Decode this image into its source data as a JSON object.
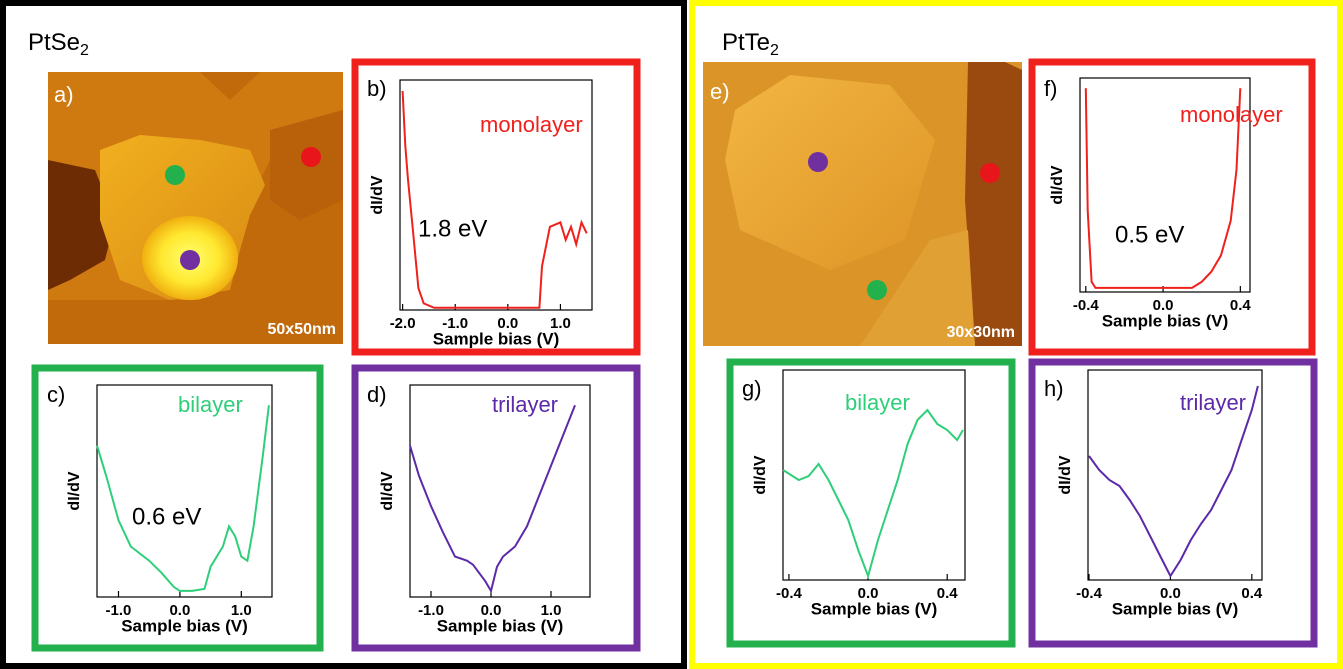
{
  "groups": [
    {
      "title": {
        "base": "PtSe",
        "sub": "2"
      }
    },
    {
      "title": {
        "base": "PtTe",
        "sub": "2"
      }
    }
  ],
  "images": [
    {
      "label": "a)",
      "scale": "50x50nm",
      "dots": [
        "#e8161b",
        "#22b14c",
        "#7030a0"
      ]
    },
    {
      "label": "e)",
      "scale": "30x30nm",
      "dots": [
        "#7030a0",
        "#e8161b",
        "#22b14c"
      ]
    }
  ],
  "chart_data": [
    {
      "type": "line",
      "panel_label": "b)",
      "annotation": "monolayer",
      "gap_label": "1.8 eV",
      "xlabel": "Sample bias (V)",
      "ylabel": "dI/dV",
      "color": "#f0201c",
      "frame_color": "#f0201c",
      "x": [
        -2.0,
        -1.95,
        -1.9,
        -1.8,
        -1.7,
        -1.6,
        -1.4,
        -1.0,
        -0.5,
        0.0,
        0.4,
        0.6,
        0.65,
        0.8,
        1.0,
        1.1,
        1.2,
        1.3,
        1.4,
        1.5
      ],
      "values": [
        100,
        75,
        60,
        35,
        10,
        3,
        1,
        1,
        1,
        1,
        1,
        1,
        20,
        38,
        40,
        32,
        38,
        30,
        40,
        35
      ],
      "xlim": [
        -2.05,
        1.6
      ],
      "ylim": [
        0,
        105
      ],
      "xticks": [
        {
          "value": -2.0,
          "label": "-2.0"
        },
        {
          "value": -1.0,
          "label": "-1.0"
        },
        {
          "value": 0,
          "label": "0.0"
        },
        {
          "value": 1.0,
          "label": "1.0"
        }
      ]
    },
    {
      "type": "line",
      "panel_label": "c)",
      "annotation": "bilayer",
      "gap_label": "0.6 eV",
      "xlabel": "Sample bias (V)",
      "ylabel": "dI/dV",
      "color": "#2fcf7a",
      "frame_color": "#22b14c",
      "x": [
        -1.35,
        -1.2,
        -1.0,
        -0.8,
        -0.5,
        -0.3,
        -0.1,
        0.0,
        0.2,
        0.4,
        0.5,
        0.7,
        0.8,
        0.9,
        1.0,
        1.1,
        1.2,
        1.35,
        1.45
      ],
      "values": [
        75,
        60,
        38,
        25,
        18,
        12,
        5,
        3,
        3,
        4,
        15,
        25,
        35,
        30,
        20,
        18,
        35,
        70,
        95
      ],
      "xlim": [
        -1.35,
        1.5
      ],
      "ylim": [
        0,
        105
      ],
      "xticks": [
        {
          "value": -1.0,
          "label": "-1.0"
        },
        {
          "value": 0,
          "label": "0.0"
        },
        {
          "value": 1.0,
          "label": "1.0"
        }
      ]
    },
    {
      "type": "line",
      "panel_label": "d)",
      "annotation": "trilayer",
      "xlabel": "Sample bias (V)",
      "ylabel": "dI/dV",
      "color": "#5b2aa8",
      "frame_color": "#7030a0",
      "x": [
        -1.35,
        -1.2,
        -1.0,
        -0.8,
        -0.6,
        -0.4,
        -0.3,
        -0.1,
        0.0,
        0.1,
        0.2,
        0.4,
        0.6,
        0.8,
        1.0,
        1.2,
        1.4
      ],
      "values": [
        75,
        60,
        45,
        32,
        20,
        18,
        16,
        8,
        3,
        15,
        20,
        25,
        35,
        50,
        65,
        80,
        95
      ],
      "xlim": [
        -1.35,
        1.65
      ],
      "ylim": [
        0,
        105
      ],
      "xticks": [
        {
          "value": -1.0,
          "label": "-1.0"
        },
        {
          "value": 0,
          "label": "0.0"
        },
        {
          "value": 1.0,
          "label": "1.0"
        }
      ]
    },
    {
      "type": "line",
      "panel_label": "f)",
      "annotation": "monolayer",
      "gap_label": "0.5 eV",
      "xlabel": "Sample bias (V)",
      "ylabel": "dI/dV",
      "color": "#f0201c",
      "frame_color": "#f0201c",
      "x": [
        -0.4,
        -0.39,
        -0.37,
        -0.35,
        -0.2,
        0.0,
        0.15,
        0.2,
        0.25,
        0.3,
        0.35,
        0.38,
        0.4
      ],
      "values": [
        100,
        40,
        5,
        2,
        2,
        2,
        2,
        5,
        10,
        18,
        35,
        60,
        100
      ],
      "xlim": [
        -0.43,
        0.45
      ],
      "ylim": [
        0,
        105
      ],
      "xticks": [
        -0.4,
        {
          "value": 0,
          "label": "0.0"
        },
        0.4
      ]
    },
    {
      "type": "line",
      "panel_label": "g)",
      "annotation": "bilayer",
      "xlabel": "Sample bias (V)",
      "ylabel": "dI/dV",
      "color": "#2fcf7a",
      "frame_color": "#22b14c",
      "x": [
        -0.43,
        -0.35,
        -0.3,
        -0.25,
        -0.2,
        -0.15,
        -0.1,
        -0.05,
        0.0,
        0.05,
        0.1,
        0.15,
        0.2,
        0.25,
        0.3,
        0.35,
        0.4,
        0.45,
        0.48
      ],
      "values": [
        55,
        50,
        52,
        58,
        50,
        40,
        30,
        15,
        2,
        20,
        35,
        50,
        68,
        80,
        85,
        78,
        75,
        70,
        75
      ],
      "xlim": [
        -0.43,
        0.49
      ],
      "ylim": [
        0,
        105
      ],
      "xticks": [
        -0.4,
        {
          "value": 0,
          "label": "0.0"
        },
        0.4
      ]
    },
    {
      "type": "line",
      "panel_label": "h)",
      "annotation": "trilayer",
      "xlabel": "Sample bias (V)",
      "ylabel": "dI/dV",
      "color": "#5b2aa8",
      "frame_color": "#7030a0",
      "x": [
        -0.4,
        -0.35,
        -0.3,
        -0.25,
        -0.2,
        -0.15,
        -0.1,
        -0.05,
        0.0,
        0.05,
        0.1,
        0.15,
        0.2,
        0.25,
        0.3,
        0.35,
        0.4,
        0.43
      ],
      "values": [
        62,
        55,
        50,
        47,
        40,
        32,
        22,
        12,
        2,
        10,
        20,
        28,
        35,
        45,
        55,
        70,
        85,
        97
      ],
      "xlim": [
        -0.405,
        0.45
      ],
      "ylim": [
        0,
        105
      ],
      "xticks": [
        -0.4,
        {
          "value": 0,
          "label": "0.0"
        },
        0.4
      ]
    }
  ]
}
